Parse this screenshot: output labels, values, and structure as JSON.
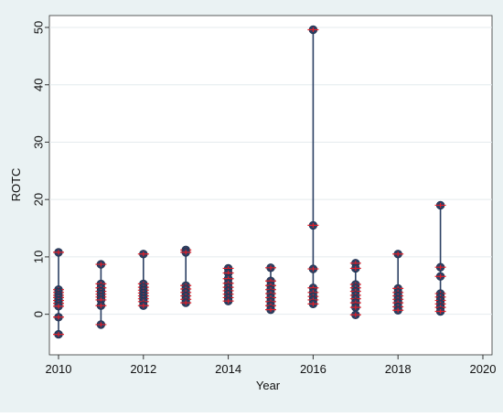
{
  "chart_data": {
    "type": "scatter",
    "title": "",
    "xlabel": "Year",
    "ylabel": "ROTC",
    "xlim": [
      2010,
      2020
    ],
    "ylim": [
      -5,
      50
    ],
    "xticks": [
      2010,
      2012,
      2014,
      2016,
      2018,
      2020
    ],
    "yticks": [
      0,
      10,
      20,
      30,
      40,
      50
    ],
    "grid": "horizontal",
    "legend": "none",
    "colors": {
      "marker": "#2b3f63",
      "cross": "#e0202a",
      "line": "#2b3f63",
      "plot_bg": "#ffffff",
      "outer_bg": "#eaf2f3"
    },
    "series": [
      {
        "x": 2010,
        "values": [
          10.8,
          4.3,
          3.8,
          3.3,
          2.9,
          2.4,
          1.9,
          1.4,
          -0.5,
          -3.5
        ]
      },
      {
        "x": 2011,
        "values": [
          8.7,
          5.3,
          4.6,
          4.0,
          3.5,
          3.0,
          2.5,
          1.5,
          -1.8
        ]
      },
      {
        "x": 2012,
        "values": [
          10.5,
          5.3,
          4.7,
          4.2,
          3.7,
          3.2,
          2.7,
          2.2,
          1.5
        ]
      },
      {
        "x": 2013,
        "values": [
          11.2,
          10.8,
          5.0,
          4.4,
          3.8,
          3.2,
          2.6,
          2.0
        ]
      },
      {
        "x": 2014,
        "values": [
          8.0,
          7.2,
          6.2,
          5.4,
          4.7,
          4.1,
          3.5,
          2.9,
          2.3
        ]
      },
      {
        "x": 2015,
        "values": [
          8.1,
          5.8,
          5.0,
          4.3,
          3.6,
          2.9,
          2.2,
          1.5,
          0.8
        ]
      },
      {
        "x": 2016,
        "values": [
          49.6,
          15.5,
          7.9,
          4.6,
          3.8,
          3.1,
          2.5,
          1.8
        ]
      },
      {
        "x": 2017,
        "values": [
          8.9,
          8.0,
          5.2,
          4.6,
          4.0,
          3.3,
          2.7,
          2.0,
          1.2,
          -0.1
        ]
      },
      {
        "x": 2018,
        "values": [
          10.5,
          4.5,
          3.8,
          3.2,
          2.6,
          2.0,
          1.3,
          0.7
        ]
      },
      {
        "x": 2019,
        "values": [
          19.0,
          8.2,
          6.6,
          3.6,
          3.0,
          2.4,
          1.8,
          1.2,
          0.5
        ]
      }
    ]
  }
}
